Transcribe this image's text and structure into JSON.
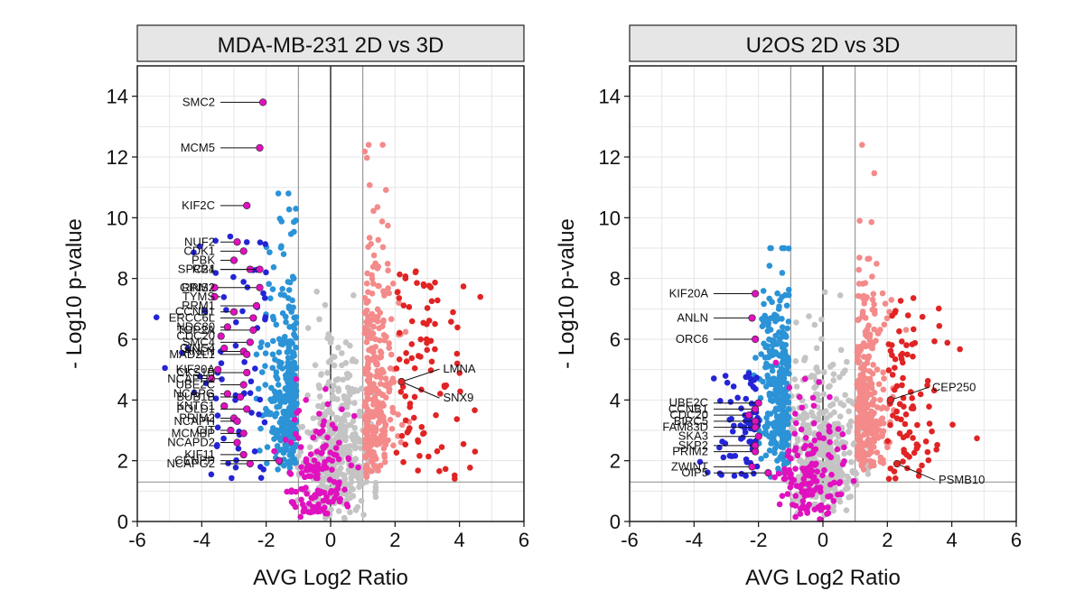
{
  "colors": {
    "ns": "#c4c4c4",
    "up_light": "#f48a8a",
    "up_dark": "#e02424",
    "down_light": "#2b93d6",
    "down_dark": "#2424d6",
    "highlight": "#e011bf",
    "strip_fill": "#e6e6e6",
    "grid": "#e6e6e6",
    "ref_line": "#8c8c8c"
  },
  "chart_data": [
    {
      "type": "scatter",
      "title": "MDA-MB-231 2D vs 3D",
      "xlabel": "AVG Log2 Ratio",
      "ylabel": "- Log10 p-value",
      "xlim": [
        -6,
        6
      ],
      "ylim": [
        0,
        15
      ],
      "xticks": [
        -6,
        -4,
        -2,
        0,
        2,
        4,
        6
      ],
      "yticks": [
        0,
        2,
        4,
        6,
        8,
        10,
        12,
        14
      ],
      "fc_threshold": 1,
      "p_threshold": 1.3,
      "label_side": "left",
      "labeled_genes": [
        {
          "gene": "SMC2",
          "x": -2.1,
          "y": 13.8
        },
        {
          "gene": "MCM5",
          "x": -2.2,
          "y": 12.3
        },
        {
          "gene": "KIF2C",
          "x": -2.6,
          "y": 10.4
        },
        {
          "gene": "NUF2",
          "x": -2.9,
          "y": 9.2
        },
        {
          "gene": "CDK1",
          "x": -2.7,
          "y": 8.9
        },
        {
          "gene": "PBK",
          "x": -3.0,
          "y": 8.6
        },
        {
          "gene": "RB1",
          "x": -2.5,
          "y": 8.3
        },
        {
          "gene": "SPC24",
          "x": -2.2,
          "y": 8.3
        },
        {
          "gene": "RRM2",
          "x": -3.6,
          "y": 7.7
        },
        {
          "gene": "GINS2",
          "x": -2.2,
          "y": 7.7
        },
        {
          "gene": "TYMS",
          "x": -3.6,
          "y": 7.4
        },
        {
          "gene": "RRM1",
          "x": -2.3,
          "y": 7.1
        },
        {
          "gene": "CCNB1",
          "x": -3.0,
          "y": 6.9
        },
        {
          "gene": "ERCC6L",
          "x": -2.4,
          "y": 6.7
        },
        {
          "gene": "NDC80",
          "x": -3.2,
          "y": 6.4
        },
        {
          "gene": "TOP2A",
          "x": -2.4,
          "y": 6.3
        },
        {
          "gene": "CDC20",
          "x": -3.4,
          "y": 6.1
        },
        {
          "gene": "SMC4",
          "x": -2.5,
          "y": 5.9
        },
        {
          "gene": "GINS4",
          "x": -3.3,
          "y": 5.7
        },
        {
          "gene": "ANLN",
          "x": -2.7,
          "y": 5.6
        },
        {
          "gene": "MAD2L1",
          "x": -2.6,
          "y": 5.5
        },
        {
          "gene": "KIF20A",
          "x": -3.5,
          "y": 5.0
        },
        {
          "gene": "CKS1B",
          "x": -2.6,
          "y": 4.9
        },
        {
          "gene": "NCAPH2",
          "x": -3.7,
          "y": 4.7
        },
        {
          "gene": "UBE2C",
          "x": -2.7,
          "y": 4.5
        },
        {
          "gene": "NCAPG",
          "x": -3.2,
          "y": 4.2
        },
        {
          "gene": "BUB1B",
          "x": -2.8,
          "y": 4.1
        },
        {
          "gene": "KNTC1",
          "x": -3.3,
          "y": 3.8
        },
        {
          "gene": "POLD1",
          "x": -2.6,
          "y": 3.7
        },
        {
          "gene": "PRIM2",
          "x": -3.0,
          "y": 3.4
        },
        {
          "gene": "NCAPH",
          "x": -2.9,
          "y": 3.3
        },
        {
          "gene": "CIT",
          "x": -3.1,
          "y": 3.0
        },
        {
          "gene": "MCMBP",
          "x": -2.7,
          "y": 2.9
        },
        {
          "gene": "NCAPD2",
          "x": -2.9,
          "y": 2.6
        },
        {
          "gene": "KIF11",
          "x": -2.7,
          "y": 2.2
        },
        {
          "gene": "NCAPG2",
          "x": -2.5,
          "y": 1.9
        },
        {
          "gene": "CENPP",
          "x": -1.6,
          "y": 2.0
        },
        {
          "gene": "LMNA",
          "x": 2.2,
          "y": 4.6
        },
        {
          "gene": "SNX9",
          "x": 2.2,
          "y": 4.6
        }
      ]
    },
    {
      "type": "scatter",
      "title": "U2OS 2D vs 3D",
      "xlabel": "AVG Log2 Ratio",
      "ylabel": "- Log10 p-value",
      "xlim": [
        -6,
        6
      ],
      "ylim": [
        0,
        15
      ],
      "xticks": [
        -6,
        -4,
        -2,
        0,
        2,
        4,
        6
      ],
      "yticks": [
        0,
        2,
        4,
        6,
        8,
        10,
        12,
        14
      ],
      "fc_threshold": 1,
      "p_threshold": 1.3,
      "label_side": "left",
      "labeled_genes": [
        {
          "gene": "KIF20A",
          "x": -2.1,
          "y": 7.5
        },
        {
          "gene": "ANLN",
          "x": -2.2,
          "y": 6.7
        },
        {
          "gene": "ORC6",
          "x": -2.1,
          "y": 6.0
        },
        {
          "gene": "UBE2C",
          "x": -2.0,
          "y": 3.9
        },
        {
          "gene": "CCNB1",
          "x": -2.1,
          "y": 3.7
        },
        {
          "gene": "CDC20",
          "x": -2.3,
          "y": 3.5
        },
        {
          "gene": "BIRC5",
          "x": -2.1,
          "y": 3.3
        },
        {
          "gene": "FAM83D",
          "x": -2.1,
          "y": 3.1
        },
        {
          "gene": "SKA3",
          "x": -2.0,
          "y": 2.8
        },
        {
          "gene": "SKP2",
          "x": -2.1,
          "y": 2.5
        },
        {
          "gene": "PRIM2",
          "x": -2.1,
          "y": 2.3
        },
        {
          "gene": "ZWINT",
          "x": -2.2,
          "y": 1.8
        },
        {
          "gene": "OIP5",
          "x": -1.7,
          "y": 1.6
        },
        {
          "gene": "CEP250",
          "x": 2.1,
          "y": 4.0
        },
        {
          "gene": "PSMB10",
          "x": 2.3,
          "y": 1.9
        }
      ]
    }
  ]
}
